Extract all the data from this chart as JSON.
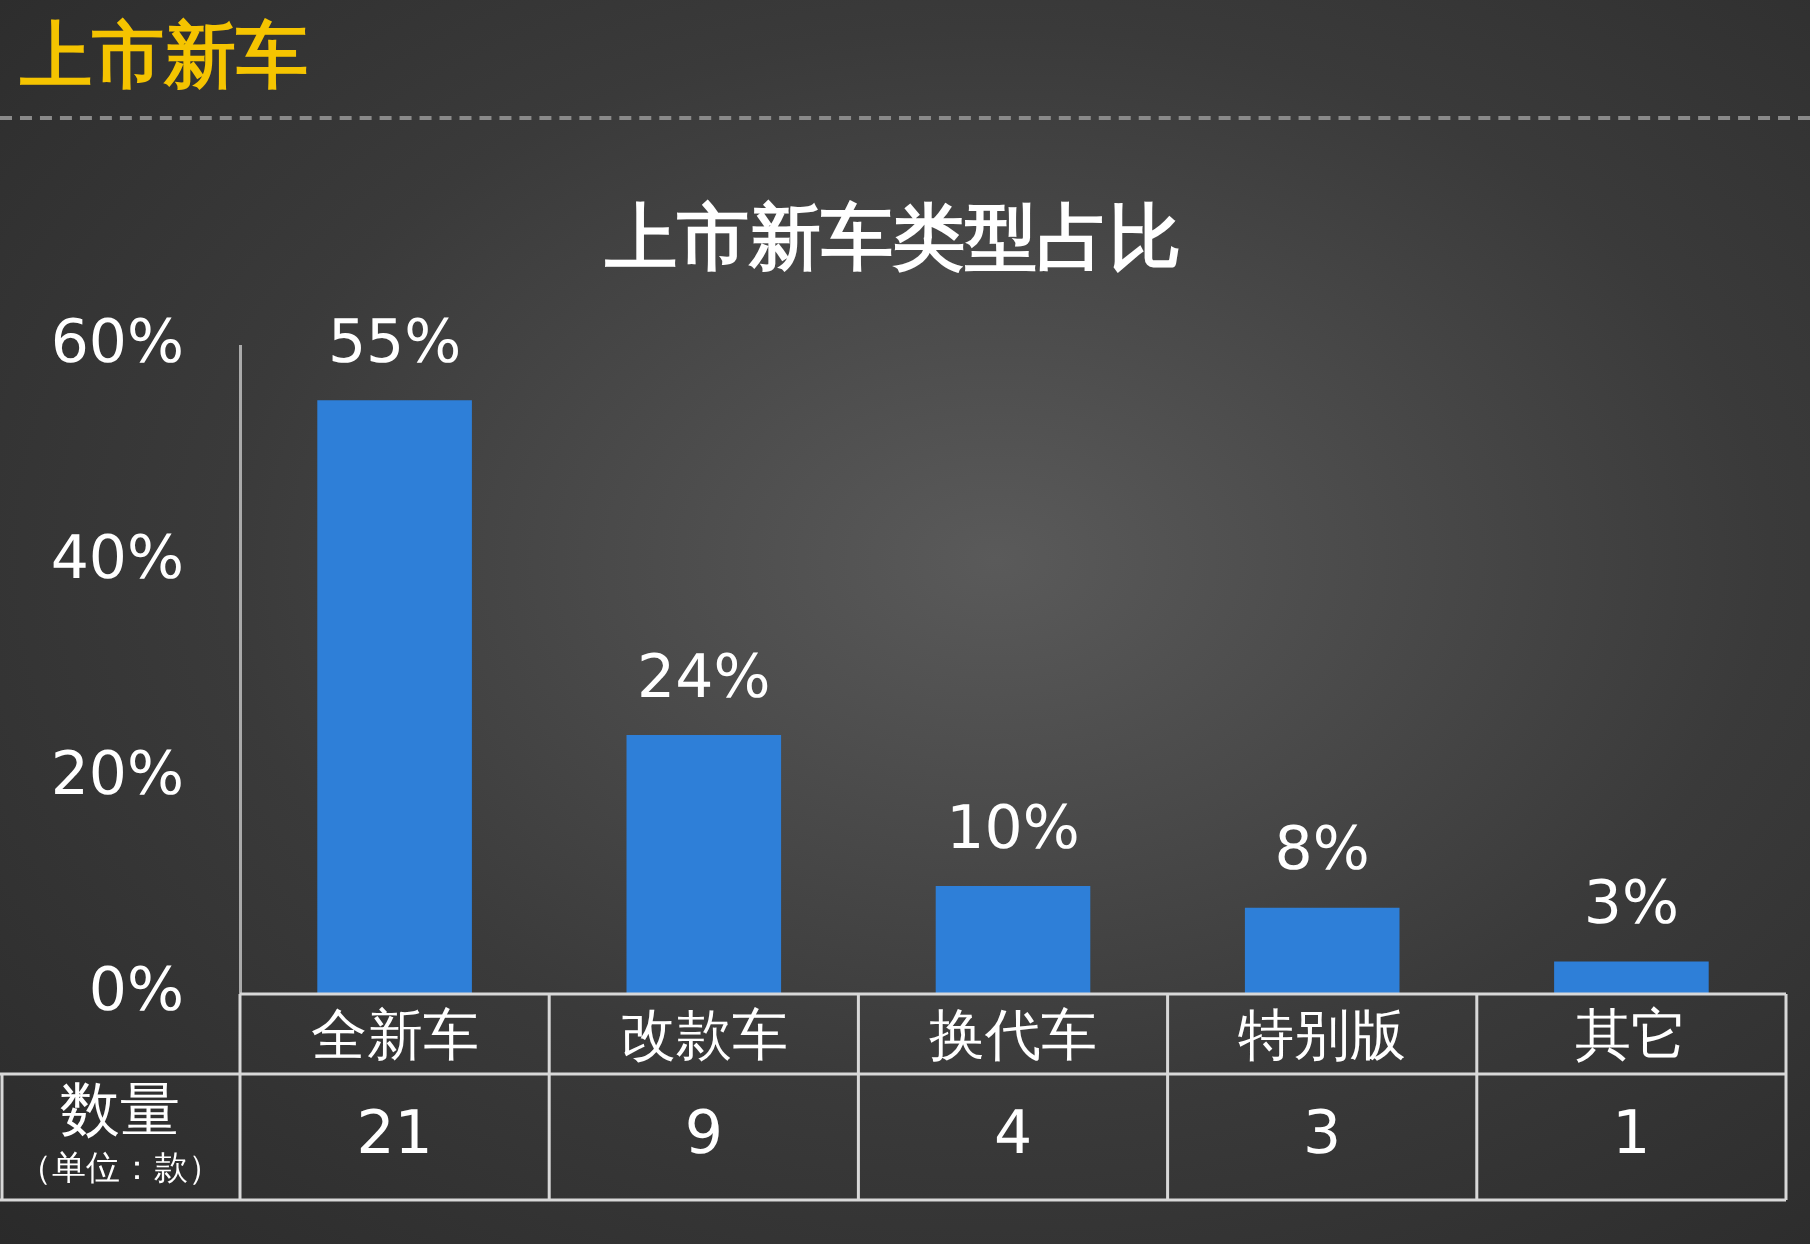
{
  "chart_data": {
    "type": "bar",
    "title": "上市新车类型占比",
    "categories": [
      "全新车",
      "改款车",
      "换代车",
      "特别版",
      "其它"
    ],
    "values": [
      55,
      24,
      10,
      8,
      3
    ],
    "value_labels": [
      "55%",
      "24%",
      "10%",
      "8%",
      "3%"
    ],
    "color": "#2e7fd8",
    "ylim": [
      0,
      60
    ],
    "yticks": [
      {
        "value": 0,
        "label": "0%"
      },
      {
        "value": 20,
        "label": "20%"
      },
      {
        "value": 40,
        "label": "40%"
      },
      {
        "value": 60,
        "label": "60%"
      }
    ],
    "grid": false,
    "legend": false,
    "annotations": [
      "上市新车",
      "数量",
      "（单位：款）",
      "21",
      "9",
      "4",
      "3",
      "1"
    ]
  }
}
